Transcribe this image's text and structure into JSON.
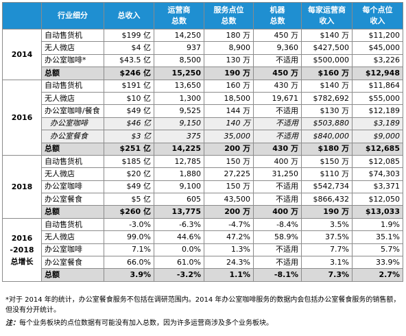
{
  "headers": [
    "",
    "行业细分",
    "总收入",
    "运营商\n总数",
    "服务点位\n总数",
    "机器\n总数",
    "每家运营商\n收入",
    "每个点位\n收入"
  ],
  "groups": [
    {
      "year": "2014",
      "rows": [
        {
          "type": "row",
          "cells": [
            "自动售货机",
            "$199 亿",
            "14,250",
            "180 万",
            "450 万",
            "$140 万",
            "$11,200"
          ]
        },
        {
          "type": "row",
          "cells": [
            "无人微店",
            "$4 亿",
            "937",
            "8,900",
            "9,360",
            "$427,500",
            "$45,000"
          ]
        },
        {
          "type": "row",
          "cells": [
            "办公室咖啡*",
            "$43.5 亿",
            "8,500",
            "130 万",
            "不适用",
            "$500,000",
            "$3,226"
          ]
        },
        {
          "type": "total",
          "cells": [
            "总额",
            "$246 亿",
            "15,250",
            "190 万",
            "450 万",
            "$160 万",
            "$12,948"
          ]
        }
      ]
    },
    {
      "year": "2016",
      "rows": [
        {
          "type": "row",
          "cells": [
            "自动售货机",
            "$191 亿",
            "13,650",
            "160 万",
            "430 万",
            "$140 万",
            "$11,864"
          ]
        },
        {
          "type": "row",
          "cells": [
            "无人微店",
            "$10 亿",
            "1,300",
            "18,500",
            "19,671",
            "$782,692",
            "$55,000"
          ]
        },
        {
          "type": "row",
          "cells": [
            "办公室咖啡/餐食",
            "$49 亿",
            "9,525",
            "144 万",
            "不适用",
            "$130 万",
            "$12,189"
          ]
        },
        {
          "type": "sub",
          "cells": [
            "办公室咖啡",
            "$46 亿",
            "9,150",
            "140 万",
            "不适用",
            "$503,880",
            "$3,189"
          ]
        },
        {
          "type": "sub",
          "cells": [
            "办公室餐食",
            "$3 亿",
            "375",
            "35,000",
            "不适用",
            "$840,000",
            "$9,000"
          ]
        },
        {
          "type": "total",
          "cells": [
            "总额",
            "$251 亿",
            "14,225",
            "200 万",
            "430 万",
            "$180 万",
            "$12,685"
          ]
        }
      ]
    },
    {
      "year": "2018",
      "rows": [
        {
          "type": "row",
          "cells": [
            "自动售货机",
            "$185 亿",
            "12,785",
            "150 万",
            "400 万",
            "$150 万",
            "$12,085"
          ]
        },
        {
          "type": "row",
          "cells": [
            "无人微店",
            "$20 亿",
            "1,880",
            "27,225",
            "31,250",
            "$110 万",
            "$74,303"
          ]
        },
        {
          "type": "row",
          "cells": [
            "办公室咖啡",
            "$49 亿",
            "9,100",
            "150 万",
            "不适用",
            "$542,734",
            "$3,371"
          ]
        },
        {
          "type": "row",
          "cells": [
            "办公室餐食",
            "$5 亿",
            "605",
            "43,500",
            "不适用",
            "$866,432",
            "$12,050"
          ]
        },
        {
          "type": "total",
          "cells": [
            "总额",
            "$260 亿",
            "13,775",
            "200 万",
            "400 万",
            "190 万",
            "$13,033"
          ]
        }
      ]
    },
    {
      "year": "2016\n-2018\n总增长",
      "rows": [
        {
          "type": "row",
          "cells": [
            "自动售货机",
            "-3.0%",
            "-6.3%",
            "-4.7%",
            "-8.4%",
            "3.5%",
            "1.9%"
          ]
        },
        {
          "type": "row",
          "cells": [
            "无人微店",
            "99.0%",
            "44.6%",
            "47.2%",
            "58.9%",
            "37.5%",
            "35.1%"
          ]
        },
        {
          "type": "row",
          "cells": [
            "办公室咖啡",
            "7.1%",
            "0.0%",
            "1.3%",
            "不适用",
            "7.7%",
            "5.7%"
          ]
        },
        {
          "type": "row",
          "cells": [
            "办公室餐食",
            "66.0%",
            "61.0%",
            "24.3%",
            "不适用",
            "3.1%",
            "33.9%"
          ]
        },
        {
          "type": "total",
          "cells": [
            "总额",
            "3.9%",
            "-3.2%",
            "1.1%",
            "-8.1%",
            "7.3%",
            "2.7%"
          ]
        }
      ]
    }
  ],
  "footnotes": {
    "note1": "*对于 2014 年的统计，办公室餐食服务不包括在调研范围内。2014 年办公室咖啡服务的数据内会包括办公室餐食服务的销售额，但没有分开统计。",
    "note2_label": "注：",
    "note2_text": "每个业务板块的点位数据有可能没有加入总数，因为许多运营商涉及多个业务板块。"
  }
}
